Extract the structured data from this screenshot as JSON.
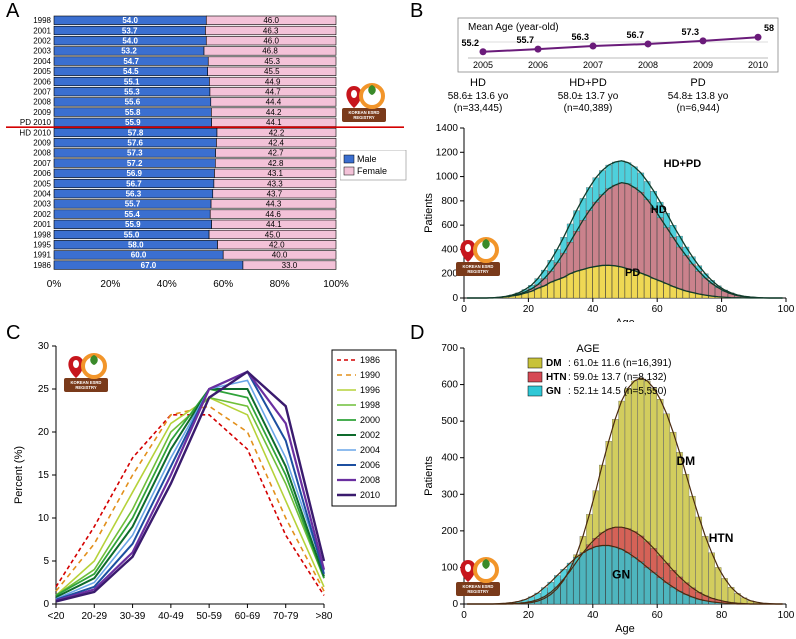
{
  "panelA": {
    "label": "A",
    "male_color": "#3b6fd0",
    "female_color": "#f3c2d8",
    "border": "#000",
    "legend": [
      "Male",
      "Female"
    ],
    "legend_box_border": "#000",
    "redline_color": "#d40000",
    "x_ticks": [
      "0%",
      "20%",
      "40%",
      "60%",
      "80%",
      "100%"
    ],
    "rows": [
      {
        "y": "1998",
        "m": 54.0,
        "f": 46.0
      },
      {
        "y": "2001",
        "m": 53.7,
        "f": 46.3
      },
      {
        "y": "2002",
        "m": 54.0,
        "f": 46.0
      },
      {
        "y": "2003",
        "m": 53.2,
        "f": 46.8
      },
      {
        "y": "2004",
        "m": 54.7,
        "f": 45.3
      },
      {
        "y": "2005",
        "m": 54.5,
        "f": 45.5
      },
      {
        "y": "2006",
        "m": 55.1,
        "f": 44.9
      },
      {
        "y": "2007",
        "m": 55.3,
        "f": 44.7
      },
      {
        "y": "2008",
        "m": 55.6,
        "f": 44.4
      },
      {
        "y": "2009",
        "m": 55.8,
        "f": 44.2
      },
      {
        "y": "PD 2010",
        "m": 55.9,
        "f": 44.1
      },
      {
        "y": "HD 2010",
        "m": 57.8,
        "f": 42.2
      },
      {
        "y": "2009",
        "m": 57.6,
        "f": 42.4
      },
      {
        "y": "2008",
        "m": 57.3,
        "f": 42.7
      },
      {
        "y": "2007",
        "m": 57.2,
        "f": 42.8
      },
      {
        "y": "2006",
        "m": 56.9,
        "f": 43.1
      },
      {
        "y": "2005",
        "m": 56.7,
        "f": 43.3
      },
      {
        "y": "2004",
        "m": 56.3,
        "f": 43.7
      },
      {
        "y": "2003",
        "m": 55.7,
        "f": 44.3
      },
      {
        "y": "2002",
        "m": 55.4,
        "f": 44.6
      },
      {
        "y": "2001",
        "m": 55.9,
        "f": 44.1
      },
      {
        "y": "1998",
        "m": 55.0,
        "f": 45.0
      },
      {
        "y": "1995",
        "m": 58.0,
        "f": 42.0
      },
      {
        "y": "1991",
        "m": 60.0,
        "f": 40.0
      },
      {
        "y": "1986",
        "m": 67.0,
        "f": 33.0
      }
    ],
    "redline_after_index": 10,
    "label_fontsize": 8,
    "value_fontsize": 8,
    "axis_fontsize": 10
  },
  "panelB": {
    "label": "B",
    "inset": {
      "title": "Mean Age (year-old)",
      "years": [
        "2005",
        "2006",
        "2007",
        "2008",
        "2009",
        "2010"
      ],
      "values": [
        55.2,
        55.7,
        56.3,
        56.7,
        57.3,
        58
      ],
      "line_color": "#6a1b7a",
      "marker_color": "#6a1b7a",
      "bg": "#fff",
      "border": "#888",
      "ylim": [
        54,
        59
      ]
    },
    "stats": [
      {
        "name": "HD",
        "age": "58.6± 13.6 yo",
        "n": "(n=33,445)"
      },
      {
        "name": "HD+PD",
        "age": "58.0± 13.7 yo",
        "n": "(n=40,389)"
      },
      {
        "name": "PD",
        "age": "54.8± 13.8 yo",
        "n": "(n=6,944)"
      }
    ],
    "series": [
      {
        "name": "HD+PD",
        "color": "#2fc8d6",
        "label_xy": [
          62,
          1080
        ]
      },
      {
        "name": "HD",
        "color": "#e1747e",
        "label_xy": [
          58,
          700
        ]
      },
      {
        "name": "PD",
        "color": "#f6e84a",
        "label_xy": [
          50,
          180
        ]
      }
    ],
    "curve_color": "#103b2a",
    "xlabel": "Age",
    "ylabel": "Patients",
    "xlim": [
      0,
      100
    ],
    "ylim": [
      0,
      1400
    ],
    "xticks": [
      0,
      20,
      40,
      60,
      80,
      100
    ],
    "yticks": [
      0,
      200,
      400,
      600,
      800,
      1000,
      1200,
      1400
    ],
    "axis_fontsize": 11,
    "tick_fontsize": 10,
    "hist": {
      "bins": [
        0,
        2,
        4,
        6,
        8,
        10,
        12,
        14,
        16,
        18,
        20,
        22,
        24,
        26,
        28,
        30,
        32,
        34,
        36,
        38,
        40,
        42,
        44,
        46,
        48,
        50,
        52,
        54,
        56,
        58,
        60,
        62,
        64,
        66,
        68,
        70,
        72,
        74,
        76,
        78,
        80,
        82,
        84,
        86,
        88,
        90,
        92,
        94,
        96,
        98
      ],
      "pd": [
        0,
        0,
        0,
        0,
        0,
        5,
        10,
        18,
        25,
        40,
        55,
        80,
        100,
        130,
        150,
        170,
        200,
        220,
        235,
        250,
        260,
        268,
        270,
        265,
        255,
        240,
        225,
        205,
        185,
        160,
        140,
        118,
        95,
        75,
        58,
        45,
        33,
        24,
        16,
        10,
        6,
        3,
        2,
        1,
        0,
        0,
        0,
        0,
        0,
        0
      ],
      "hd": [
        0,
        0,
        0,
        0,
        2,
        5,
        10,
        18,
        30,
        50,
        75,
        110,
        160,
        220,
        290,
        370,
        460,
        550,
        640,
        720,
        790,
        850,
        900,
        930,
        950,
        940,
        910,
        870,
        810,
        740,
        660,
        580,
        500,
        420,
        350,
        280,
        220,
        165,
        120,
        85,
        55,
        35,
        20,
        12,
        7,
        3,
        1,
        0,
        0,
        0
      ],
      "hdpd": [
        0,
        0,
        0,
        0,
        2,
        6,
        13,
        25,
        42,
        70,
        105,
        160,
        230,
        310,
        400,
        500,
        610,
        720,
        820,
        910,
        990,
        1050,
        1095,
        1120,
        1130,
        1115,
        1080,
        1030,
        960,
        880,
        790,
        698,
        600,
        510,
        420,
        340,
        265,
        200,
        145,
        100,
        66,
        42,
        25,
        14,
        8,
        4,
        1,
        0,
        0,
        0
      ]
    }
  },
  "panelC": {
    "label": "C",
    "ylabel": "Percent (%)",
    "x_categories": [
      "<20",
      "20-29",
      "30-39",
      "40-49",
      "50-59",
      "60-69",
      "70-79",
      ">80"
    ],
    "ylim": [
      0,
      30
    ],
    "yticks": [
      0,
      5,
      10,
      15,
      20,
      25,
      30
    ],
    "legend_border": "#000",
    "axis_fontsize": 11,
    "tick_fontsize": 10,
    "series": [
      {
        "name": "1986",
        "color": "#d40000",
        "dash": "4,3",
        "w": 1.6,
        "vals": [
          2,
          9,
          17,
          22,
          22,
          18,
          8,
          1
        ]
      },
      {
        "name": "1990",
        "color": "#e2901c",
        "dash": "5,4",
        "w": 1.6,
        "vals": [
          1.5,
          7,
          15,
          22,
          23,
          20,
          10,
          1.5
        ]
      },
      {
        "name": "1996",
        "color": "#b6d23a",
        "dash": "",
        "w": 1.6,
        "vals": [
          1,
          5,
          13,
          21,
          24,
          22,
          12,
          2
        ]
      },
      {
        "name": "1998",
        "color": "#6fbf3a",
        "dash": "",
        "w": 1.6,
        "vals": [
          1,
          4,
          11,
          20,
          24,
          23,
          14,
          3
        ]
      },
      {
        "name": "2000",
        "color": "#2fa33a",
        "dash": "",
        "w": 1.8,
        "vals": [
          1,
          3.5,
          10,
          19,
          25,
          24,
          15,
          3
        ]
      },
      {
        "name": "2002",
        "color": "#0e6b2c",
        "dash": "",
        "w": 2,
        "vals": [
          0.8,
          3,
          9,
          18,
          25,
          25,
          16,
          3.2
        ]
      },
      {
        "name": "2004",
        "color": "#6aa5e8",
        "dash": "",
        "w": 1.6,
        "vals": [
          0.6,
          2.5,
          8,
          17,
          25,
          26,
          17,
          3.9
        ]
      },
      {
        "name": "2006",
        "color": "#1c4fa0",
        "dash": "",
        "w": 2,
        "vals": [
          0.5,
          2,
          7,
          16,
          25,
          27,
          19,
          3.5
        ]
      },
      {
        "name": "2008",
        "color": "#6a2fa0",
        "dash": "",
        "w": 2.2,
        "vals": [
          0.4,
          1.7,
          6,
          15,
          25,
          27,
          21,
          4
        ]
      },
      {
        "name": "2010",
        "color": "#3a1b6e",
        "dash": "",
        "w": 2.4,
        "vals": [
          0.3,
          1.4,
          5.5,
          14,
          24,
          27,
          23,
          5
        ]
      }
    ]
  },
  "panelD": {
    "label": "D",
    "xlabel": "Age",
    "ylabel": "Patients",
    "xlim": [
      0,
      100
    ],
    "ylim": [
      0,
      700
    ],
    "xticks": [
      0,
      20,
      40,
      60,
      80,
      100
    ],
    "yticks": [
      0,
      100,
      200,
      300,
      400,
      500,
      600,
      700
    ],
    "axis_fontsize": 11,
    "tick_fontsize": 10,
    "legend_title": "AGE",
    "legend_border": "#000",
    "series": [
      {
        "name": "DM",
        "color": "#c8c23a",
        "text": ": 61.0± 11.6 (n=16,391)",
        "label_xy": [
          66,
          380
        ]
      },
      {
        "name": "HTN",
        "color": "#d64a55",
        "text": ": 59.0± 13.7 (n=8,132)",
        "label_xy": [
          76,
          170
        ]
      },
      {
        "name": "GN",
        "color": "#2fc8d6",
        "text": ": 52.1± 14.5 (n=5,550)",
        "label_xy": [
          46,
          70
        ]
      }
    ],
    "hist": {
      "bins": [
        0,
        2,
        4,
        6,
        8,
        10,
        12,
        14,
        16,
        18,
        20,
        22,
        24,
        26,
        28,
        30,
        32,
        34,
        36,
        38,
        40,
        42,
        44,
        46,
        48,
        50,
        52,
        54,
        56,
        58,
        60,
        62,
        64,
        66,
        68,
        70,
        72,
        74,
        76,
        78,
        80,
        82,
        84,
        86,
        88,
        90,
        92,
        94,
        96,
        98
      ],
      "gn": [
        0,
        0,
        0,
        0,
        0,
        1,
        2,
        4,
        7,
        12,
        20,
        30,
        45,
        60,
        78,
        95,
        112,
        128,
        140,
        150,
        157,
        160,
        160,
        156,
        150,
        140,
        128,
        115,
        100,
        86,
        72,
        58,
        46,
        35,
        26,
        19,
        13,
        9,
        6,
        4,
        2,
        1,
        0,
        0,
        0,
        0,
        0,
        0,
        0,
        0
      ],
      "htn": [
        0,
        0,
        0,
        0,
        0,
        0,
        0,
        1,
        2,
        4,
        7,
        12,
        20,
        32,
        48,
        68,
        90,
        115,
        140,
        162,
        180,
        195,
        205,
        210,
        210,
        206,
        198,
        186,
        170,
        152,
        132,
        112,
        92,
        74,
        58,
        44,
        32,
        23,
        16,
        11,
        7,
        4,
        2,
        1,
        0,
        0,
        0,
        0,
        0,
        0
      ],
      "dm": [
        0,
        0,
        0,
        0,
        0,
        0,
        0,
        0,
        1,
        2,
        4,
        8,
        15,
        26,
        42,
        65,
        95,
        135,
        185,
        245,
        310,
        380,
        445,
        505,
        555,
        590,
        610,
        618,
        610,
        590,
        560,
        520,
        470,
        415,
        355,
        295,
        238,
        185,
        140,
        100,
        70,
        46,
        29,
        17,
        9,
        5,
        2,
        1,
        0,
        0
      ]
    }
  },
  "logo": {
    "red": "#c7151c",
    "orange": "#f2952a",
    "text": "KOREAN ESRD REGISTRY",
    "text_color": "#fff",
    "bg": "#7a3a1a"
  }
}
